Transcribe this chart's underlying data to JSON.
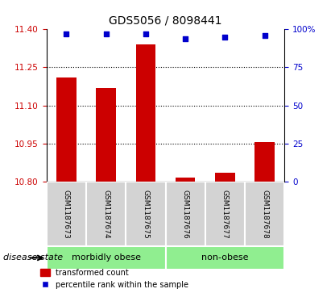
{
  "title": "GDS5056 / 8098441",
  "samples": [
    "GSM1187673",
    "GSM1187674",
    "GSM1187675",
    "GSM1187676",
    "GSM1187677",
    "GSM1187678"
  ],
  "bar_values": [
    11.21,
    11.17,
    11.34,
    10.815,
    10.835,
    10.955
  ],
  "percentile_values": [
    97,
    97,
    97,
    94,
    95,
    96
  ],
  "bar_color": "#cc0000",
  "dot_color": "#0000cc",
  "ylim_left": [
    10.8,
    11.4
  ],
  "ylim_right": [
    0,
    100
  ],
  "yticks_left": [
    10.8,
    10.95,
    11.1,
    11.25,
    11.4
  ],
  "yticks_right": [
    0,
    25,
    50,
    75,
    100
  ],
  "groups": [
    {
      "label": "morbidly obese",
      "indices": [
        0,
        1,
        2
      ],
      "color": "#90ee90"
    },
    {
      "label": "non-obese",
      "indices": [
        3,
        4,
        5
      ],
      "color": "#90ee90"
    }
  ],
  "disease_state_label": "disease state",
  "legend_entries": [
    "transformed count",
    "percentile rank within the sample"
  ],
  "bar_width": 0.5,
  "grid_color": "black",
  "background_plot": "white",
  "background_labels": "#d3d3d3"
}
